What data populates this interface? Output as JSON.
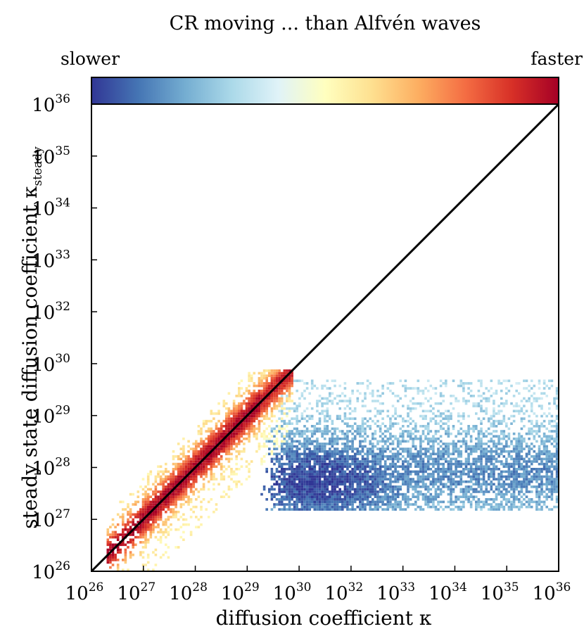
{
  "chart_data": {
    "type": "heatmap",
    "title": "CR moving ... than Alfvén waves",
    "colorbar": {
      "low_label": "slower",
      "high_label": "faster",
      "colormap": [
        "#313695",
        "#4575b4",
        "#74add1",
        "#abd9e9",
        "#e0f3f8",
        "#ffffbf",
        "#fee090",
        "#fdae61",
        "#f46d43",
        "#d73027",
        "#a50026"
      ]
    },
    "xlabel": "diffusion coefficient κ",
    "ylabel": "steady state diffusion coefficient κ_steady",
    "x_ticks": [
      {
        "base": "10",
        "exp": "26"
      },
      {
        "base": "10",
        "exp": "27"
      },
      {
        "base": "10",
        "exp": "28"
      },
      {
        "base": "10",
        "exp": "29"
      },
      {
        "base": "10",
        "exp": "30"
      },
      {
        "base": "10",
        "exp": "32"
      },
      {
        "base": "10",
        "exp": "33"
      },
      {
        "base": "10",
        "exp": "34"
      },
      {
        "base": "10",
        "exp": "35"
      },
      {
        "base": "10",
        "exp": "36"
      }
    ],
    "y_ticks": [
      {
        "base": "10",
        "exp": "26"
      },
      {
        "base": "10",
        "exp": "27"
      },
      {
        "base": "10",
        "exp": "28"
      },
      {
        "base": "10",
        "exp": "29"
      },
      {
        "base": "10",
        "exp": "30"
      },
      {
        "base": "10",
        "exp": "32"
      },
      {
        "base": "10",
        "exp": "33"
      },
      {
        "base": "10",
        "exp": "34"
      },
      {
        "base": "10",
        "exp": "35"
      },
      {
        "base": "10",
        "exp": "36"
      }
    ],
    "xscale": "log",
    "yscale": "log",
    "xlim": [
      1e+26,
      1e+36
    ],
    "ylim": [
      1e+26,
      1e+36
    ],
    "reference_line": "y = x",
    "grid": false,
    "density_regions": [
      {
        "name": "along diagonal",
        "color_side": "faster",
        "x_range_log": [
          26.3,
          30.2
        ],
        "y_range_log": [
          26.3,
          30.2
        ]
      },
      {
        "name": "blue cloud",
        "color_side": "slower",
        "x_range_log": [
          30,
          36
        ],
        "y_range_log": [
          27.3,
          30.1
        ],
        "peak_log": [
          30.8,
          27.9
        ]
      }
    ]
  }
}
